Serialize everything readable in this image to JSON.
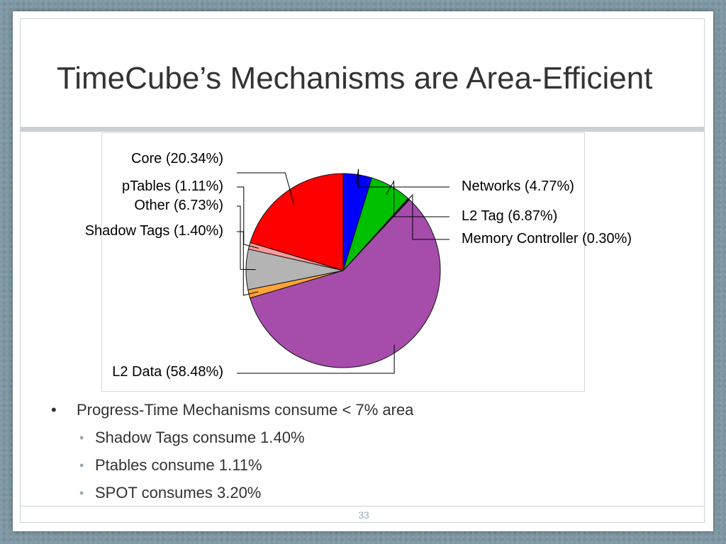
{
  "slide": {
    "title": "TimeCube’s Mechanisms are Area-Efficient",
    "page_number": "33"
  },
  "bullets": [
    {
      "level": 1,
      "marker": "•",
      "text": "Progress-Time Mechanisms consume < 7% area"
    },
    {
      "level": 2,
      "marker": "•",
      "text": "Shadow Tags consume 1.40%"
    },
    {
      "level": 2,
      "marker": "•",
      "text": "Ptables consume 1.11%"
    },
    {
      "level": 2,
      "marker": "•",
      "text": "SPOT consumes 3.20%"
    }
  ],
  "chart_data": {
    "type": "pie",
    "title": "",
    "start_angle_deg": 90,
    "direction": "counterclockwise",
    "slices": [
      {
        "label": "Core (20.34%)",
        "value": 20.34,
        "color": "#ff0000",
        "side": "left"
      },
      {
        "label": "pTables (1.11%)",
        "value": 1.11,
        "color": "#ff9a9a",
        "side": "left"
      },
      {
        "label": "Other (6.73%)",
        "value": 6.73,
        "color": "#b4b4b4",
        "side": "left"
      },
      {
        "label": "Shadow Tags (1.40%)",
        "value": 1.4,
        "color": "#ffa33a",
        "side": "left"
      },
      {
        "label": "L2 Data (58.48%)",
        "value": 58.48,
        "color": "#a64dab",
        "side": "left"
      },
      {
        "label": "Memory Controller (0.30%)",
        "value": 0.3,
        "color": "#1a1a1a",
        "side": "right"
      },
      {
        "label": "L2 Tag (6.87%)",
        "value": 6.87,
        "color": "#00c000",
        "side": "right"
      },
      {
        "label": "Networks (4.77%)",
        "value": 4.77,
        "color": "#0000ff",
        "side": "right"
      }
    ]
  }
}
